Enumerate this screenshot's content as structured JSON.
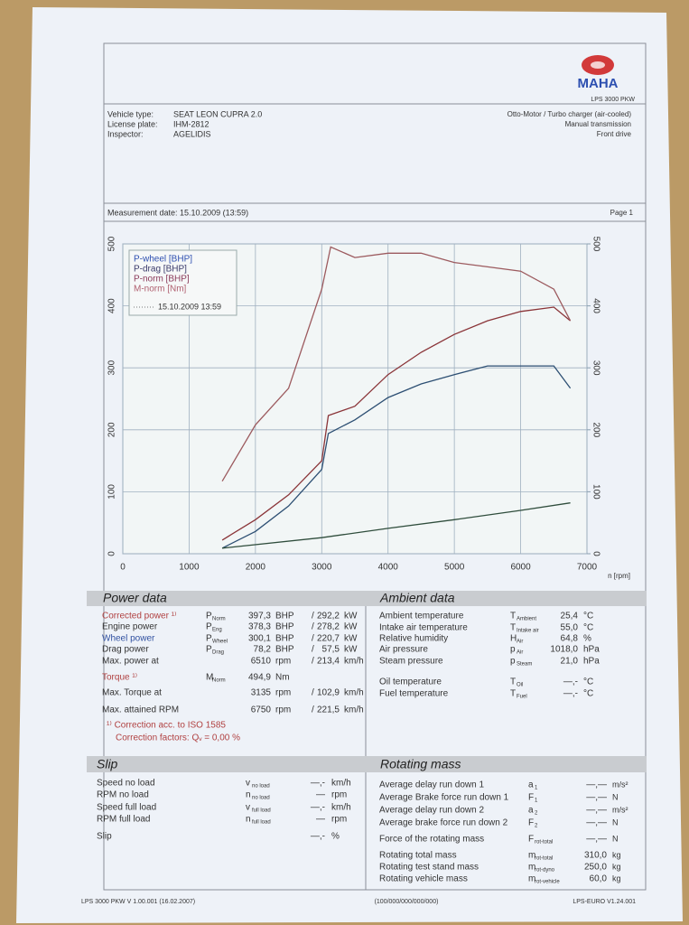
{
  "header": {
    "logo": "MAHA",
    "model": "LPS 3000 PKW",
    "vehicle": [
      {
        "label": "Vehicle type:",
        "value": "SEAT LEON CUPRA 2.0"
      },
      {
        "label": "License plate:",
        "value": "IHM-2812"
      },
      {
        "label": "Inspector:",
        "value": "AGELIDIS"
      }
    ],
    "config": [
      "Otto-Motor / Turbo charger (air-cooled)",
      "Manual transmission",
      "Front drive"
    ],
    "measurement": "Measurement date: 15.10.2009 (13:59)",
    "page": "Page 1"
  },
  "chart_data": {
    "type": "line",
    "x_label": "n [rpm]",
    "legend_date": "15.10.2009 13:59",
    "xlim": [
      0,
      7000
    ],
    "xticks": [
      0,
      1000,
      2000,
      3000,
      4000,
      5000,
      6000,
      7000
    ],
    "ylim": [
      0,
      500
    ],
    "yticks": [
      0,
      100,
      200,
      300,
      400,
      500
    ],
    "y2lim": [
      0,
      500
    ],
    "y2ticks": [
      0,
      100,
      200,
      300,
      400,
      500
    ],
    "grid": true,
    "legend": "upper left",
    "series": [
      {
        "name": "P-wheel [BHP]",
        "color": "#2d4f73",
        "text_color": "#2e4fb0",
        "x": [
          1500,
          2000,
          2500,
          3000,
          3100,
          3500,
          4000,
          4500,
          5000,
          5500,
          6000,
          6500,
          6750
        ],
        "values": [
          9,
          36,
          77,
          136,
          194,
          216,
          252,
          274,
          289,
          303,
          303,
          303,
          267
        ]
      },
      {
        "name": "P-drag [BHP]",
        "color": "#2f4d3c",
        "text_color": "#3a3a6a",
        "x": [
          1500,
          3000,
          4000,
          5000,
          6000,
          6750
        ],
        "values": [
          9,
          26,
          41,
          55,
          70,
          82
        ]
      },
      {
        "name": "P-norm [BHP]",
        "color": "#8a3438",
        "text_color": "#8a3a5a",
        "x": [
          1500,
          2000,
          2500,
          3000,
          3100,
          3500,
          4000,
          4500,
          5000,
          5500,
          6000,
          6500,
          6750
        ],
        "values": [
          22,
          55,
          95,
          150,
          223,
          238,
          289,
          325,
          354,
          376,
          391,
          398,
          376
        ]
      },
      {
        "name": "M-norm [Nm]",
        "color": "#9c5a5e",
        "text_color": "#b06070",
        "axis": "y2",
        "x": [
          1500,
          2000,
          2500,
          3000,
          3135,
          3500,
          4000,
          4500,
          5000,
          5500,
          6000,
          6500,
          6750
        ],
        "values": [
          117,
          208,
          267,
          427,
          495,
          478,
          485,
          485,
          470,
          463,
          456,
          427,
          376
        ]
      }
    ]
  },
  "power_data": {
    "title": "Power data",
    "sep": "/",
    "rows": [
      {
        "label": "Corrected power ¹⁾",
        "color": "#b04040",
        "sym": "P",
        "sub": "Norm",
        "v1": "397,3",
        "u1": "BHP",
        "v2": "292,2",
        "u2": "kW"
      },
      {
        "label": "Engine power",
        "sym": "P",
        "sub": "Eng",
        "v1": "378,3",
        "u1": "BHP",
        "v2": "278,2",
        "u2": "kW"
      },
      {
        "label": "Wheel power",
        "color": "#3050a0",
        "sym": "P",
        "sub": "Wheel",
        "v1": "300,1",
        "u1": "BHP",
        "v2": "220,7",
        "u2": "kW"
      },
      {
        "label": "Drag power",
        "sym": "P",
        "sub": "Drag",
        "v1": "78,2",
        "u1": "BHP",
        "v2": "57,5",
        "u2": "kW"
      },
      {
        "label": "Max. power at",
        "v1": "6510",
        "u1": "rpm",
        "v2": "213,4",
        "u2": "km/h"
      },
      {
        "label": "Torque ¹⁾",
        "color": "#b04040",
        "sym": "M",
        "sub": "Norm",
        "v1": "494,9",
        "u1": "Nm"
      },
      {
        "label": "Max. Torque at",
        "v1": "3135",
        "u1": "rpm",
        "v2": "102,9",
        "u2": "km/h"
      },
      {
        "label": "Max. attained RPM",
        "v1": "6750",
        "u1": "rpm",
        "v2": "221,5",
        "u2": "km/h"
      }
    ],
    "notes": [
      "¹⁾ Correction acc. to ISO 1585",
      "Correction factors: Qᵥ =   0,00 %"
    ]
  },
  "ambient_data": {
    "title": "Ambient data",
    "rows": [
      {
        "label": "Ambient temperature",
        "sym": "T",
        "sub": "Ambient",
        "value": "25,4",
        "unit": "°C"
      },
      {
        "label": "Intake air temperature",
        "sym": "T",
        "sub": "Intake air",
        "value": "55,0",
        "unit": "°C"
      },
      {
        "label": "Relative humidity",
        "sym": "H",
        "sub": "Air",
        "value": "64,8",
        "unit": "%"
      },
      {
        "label": "Air pressure",
        "sym": "p",
        "sub": "Air",
        "value": "1018,0",
        "unit": "hPa"
      },
      {
        "label": "Steam pressure",
        "sym": "p",
        "sub": "Steam",
        "value": "21,0",
        "unit": "hPa"
      },
      {
        "label": "Oil temperature",
        "sym": "T",
        "sub": "Oil",
        "value": "—,-",
        "unit": "°C"
      },
      {
        "label": "Fuel temperature",
        "sym": "T",
        "sub": "Fuel",
        "value": "—,-",
        "unit": "°C"
      }
    ]
  },
  "slip": {
    "title": "Slip",
    "rows": [
      {
        "label": "Speed no load",
        "sym": "v",
        "sub": "no load",
        "value": "—,-",
        "unit": "km/h"
      },
      {
        "label": "RPM no load",
        "sym": "n",
        "sub": "no load",
        "value": "—",
        "unit": "rpm"
      },
      {
        "label": "Speed full load",
        "sym": "v",
        "sub": "full load",
        "value": "—,-",
        "unit": "km/h"
      },
      {
        "label": "RPM full load",
        "sym": "n",
        "sub": "full load",
        "value": "—",
        "unit": "rpm"
      },
      {
        "label": "Slip",
        "value": "—,-",
        "unit": "%"
      }
    ]
  },
  "rotating_mass": {
    "title": "Rotating mass",
    "rows": [
      {
        "label": "Average delay run down 1",
        "sym": "a",
        "sub": "1",
        "value": "—,—",
        "unit": "m/s²"
      },
      {
        "label": "Average Brake force run down 1",
        "sym": "F",
        "sub": "1",
        "value": "—,—",
        "unit": "N"
      },
      {
        "label": "Average delay run down 2",
        "sym": "a",
        "sub": "2",
        "value": "—,—",
        "unit": "m/s²"
      },
      {
        "label": "Average brake force run down 2",
        "sym": "F",
        "sub": "2",
        "value": "—,—",
        "unit": "N"
      },
      {
        "label": "Force of the rotating mass",
        "sym": "F",
        "sub": "rot-total",
        "value": "—,—",
        "unit": "N"
      },
      {
        "label": "Rotating total mass",
        "sym": "m",
        "sub": "rot-total",
        "value": "310,0",
        "unit": "kg"
      },
      {
        "label": "Rotating test stand mass",
        "sym": "m",
        "sub": "rot-dyno",
        "value": "250,0",
        "unit": "kg"
      },
      {
        "label": "Rotating vehicle mass",
        "sym": "m",
        "sub": "rot-vehicle",
        "value": "60,0",
        "unit": "kg"
      }
    ]
  },
  "footer": [
    "LPS 3000 PKW V 1.00.001 (16.02.2007)",
    "(100/000/000/000/000)",
    "LPS-EURO V1.24.001"
  ]
}
